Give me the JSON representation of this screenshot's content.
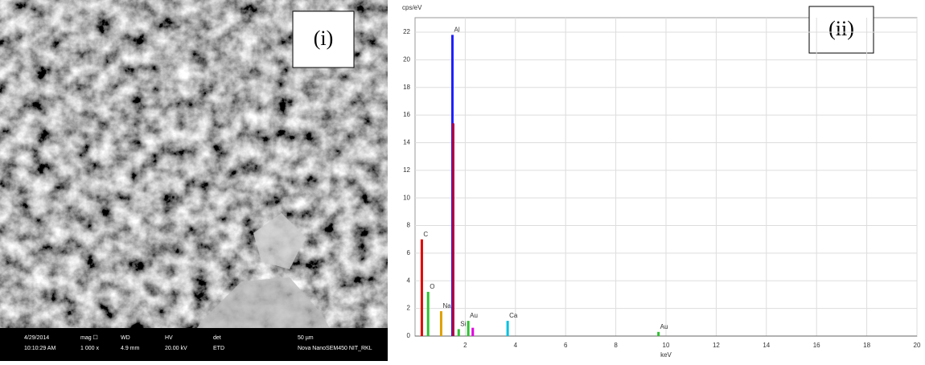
{
  "sem_panel": {
    "label": "(i)",
    "info": [
      [
        "4/29/2014",
        "10:10:29 AM"
      ],
      [
        "mag ☐",
        "1 000 x"
      ],
      [
        "WD",
        "4.9 mm"
      ],
      [
        "HV",
        "20.00 kV"
      ],
      [
        "det",
        "ETD"
      ],
      [
        "50 µm",
        "Nova NanoSEM450 NIT_RKL"
      ]
    ]
  },
  "chart_data": {
    "type": "spectrum",
    "label": "(ii)",
    "y_label": "cps/eV",
    "x_label": "keV",
    "x": [
      0.27,
      0.52,
      1.04,
      1.49,
      1.52,
      1.74,
      2.12,
      2.3,
      3.69,
      9.7
    ],
    "values": [
      7,
      3.2,
      1.8,
      21.8,
      15.4,
      0.5,
      1.1,
      0.6,
      1.1,
      0.3
    ],
    "colors": [
      "#e00000",
      "#30c030",
      "#e0a000",
      "#2020ff",
      "#b00040",
      "#30c030",
      "#30c030",
      "#e000e0",
      "#00c0e0",
      "#30c030"
    ],
    "peak_labels": [
      "C",
      "O",
      "Na",
      "Al",
      null,
      "Si",
      "Au",
      null,
      "Ca",
      "Au"
    ],
    "xlim": [
      0,
      20
    ],
    "xticks": [
      2,
      4,
      6,
      8,
      10,
      12,
      14,
      16,
      18,
      20
    ],
    "ylim": [
      0,
      22
    ],
    "yticks": [
      0,
      2,
      4,
      6,
      8,
      10,
      12,
      14,
      16,
      18,
      20,
      22
    ],
    "grid": true
  }
}
